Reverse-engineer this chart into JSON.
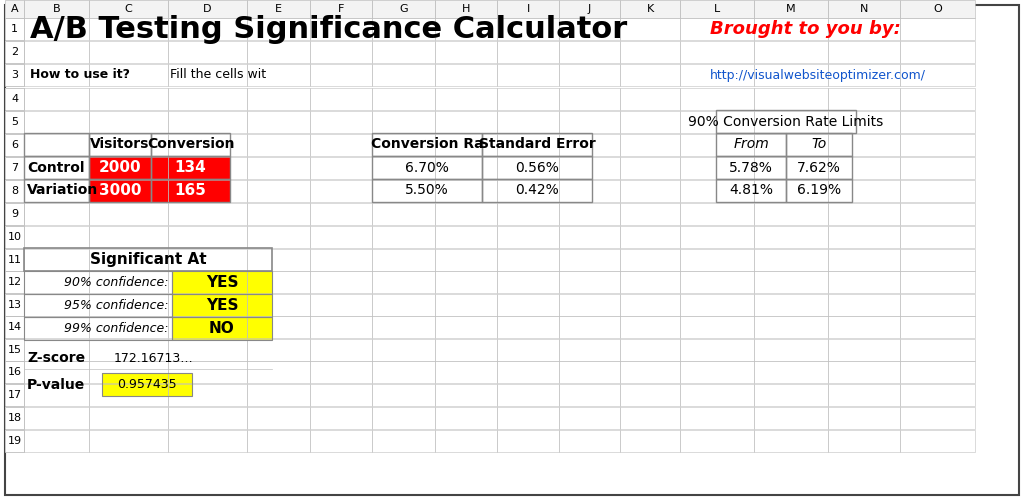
{
  "title": "A/B Testing Significance Calculator",
  "brought_to_you_by": "Brought to you by:",
  "url": "http://visualwebsiteoptimizer.com/",
  "how_to_use": "How to use it?",
  "fill_cells": "Fill the cells wit",
  "rows": [
    {
      "label": "Control",
      "visitors": "2000",
      "conversion": "134",
      "conv_rate": "6.70%",
      "std_error": "0.56%",
      "from": "5.78%",
      "to": "7.62%"
    },
    {
      "label": "Variation",
      "visitors": "3000",
      "conversion": "165",
      "conv_rate": "5.50%",
      "std_error": "0.42%",
      "from": "4.81%",
      "to": "6.19%"
    }
  ],
  "significant_at_label": "Significant At",
  "confidence_rows": [
    {
      "label": "90% confidence:",
      "value": "YES",
      "bg": "#FFFF00"
    },
    {
      "label": "95% confidence:",
      "value": "YES",
      "bg": "#FFFF00"
    },
    {
      "label": "99% confidence:",
      "value": "NO",
      "bg": "#FFFF00"
    }
  ],
  "zscore_label": "Z-score",
  "zscore_value": "172.16713…",
  "pvalue_label": "P-value",
  "pvalue_value": "0.957435",
  "col_letters": [
    "A",
    "B",
    "C",
    "D",
    "E",
    "F",
    "G",
    "H",
    "I",
    "J",
    "K",
    "L",
    "M",
    "N",
    "O"
  ],
  "bg_color": "#ffffff",
  "grid_color": "#c0c0c0",
  "header_bg": "#f3f3f3",
  "red_cell_bg": "#ff0000",
  "red_cell_fg": "#ffffff",
  "yellow_bg": "#ffff00",
  "title_color": "#000000",
  "brought_color": "#ff0000",
  "url_color": "#1155cc",
  "border_color": "#888888"
}
